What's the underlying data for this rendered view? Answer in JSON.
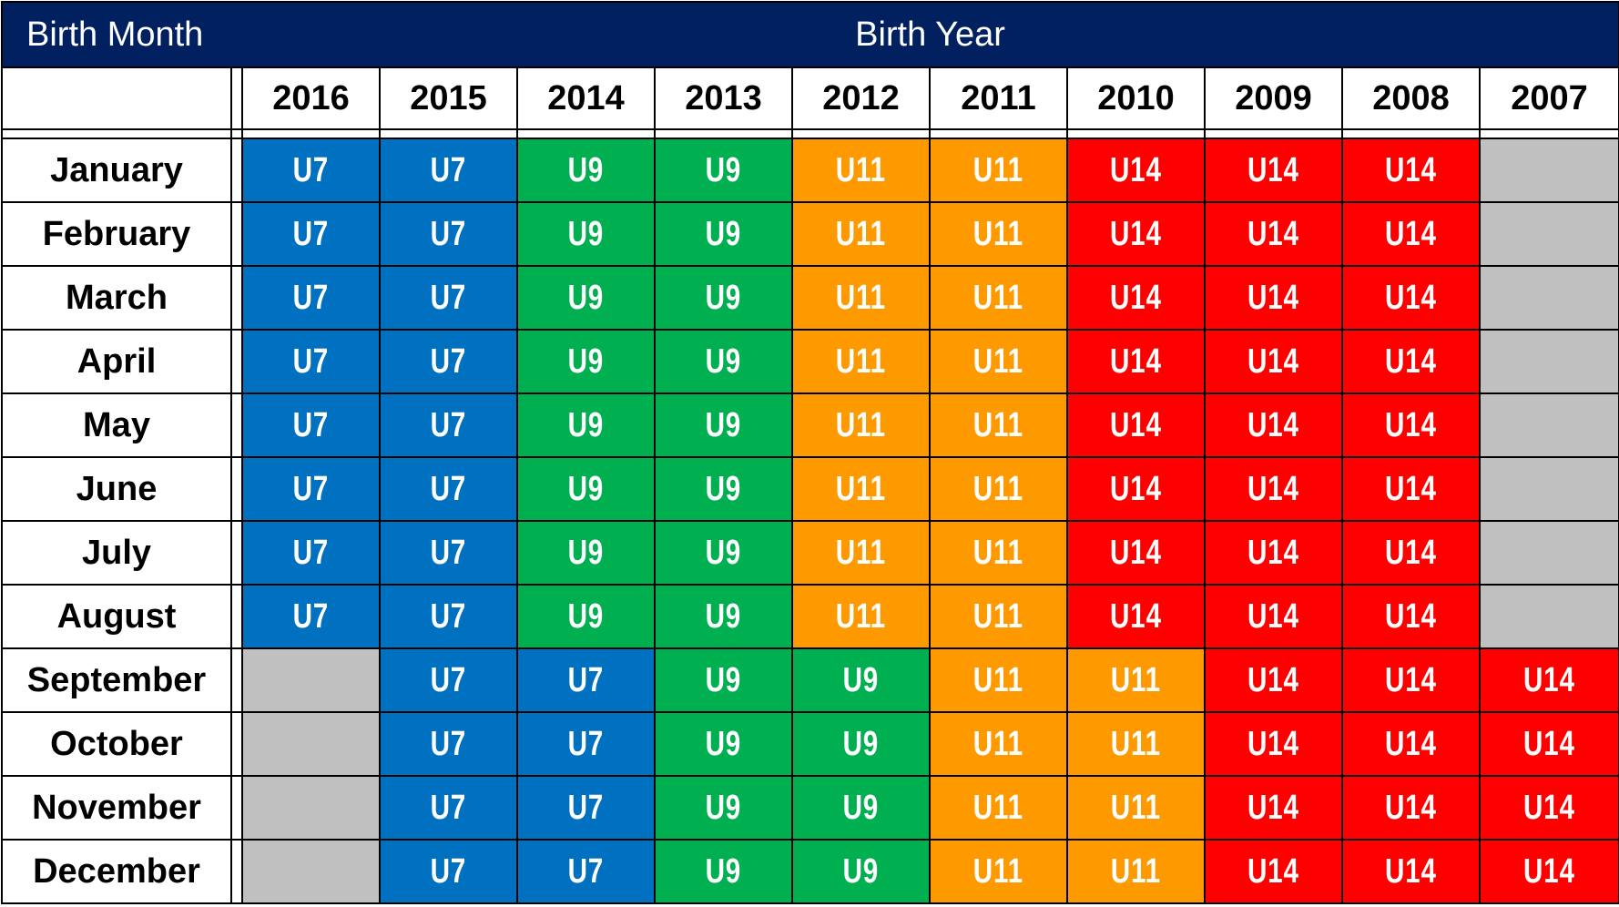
{
  "header": {
    "birth_month_label": "Birth Month",
    "birth_year_label": "Birth Year"
  },
  "years": [
    "2016",
    "2015",
    "2014",
    "2013",
    "2012",
    "2011",
    "2010",
    "2009",
    "2008",
    "2007"
  ],
  "groups": {
    "U7": {
      "label": "U7",
      "color": "#0070C0"
    },
    "U9": {
      "label": "U9",
      "color": "#00B050"
    },
    "U11": {
      "label": "U11",
      "color": "#FF9900"
    },
    "U14": {
      "label": "U14",
      "color": "#FF0000"
    },
    "none": {
      "label": "",
      "color": "#C0C0C0"
    }
  },
  "rows": [
    {
      "month": "January",
      "cells": [
        "U7",
        "U7",
        "U9",
        "U9",
        "U11",
        "U11",
        "U14",
        "U14",
        "U14",
        ""
      ]
    },
    {
      "month": "February",
      "cells": [
        "U7",
        "U7",
        "U9",
        "U9",
        "U11",
        "U11",
        "U14",
        "U14",
        "U14",
        ""
      ]
    },
    {
      "month": "March",
      "cells": [
        "U7",
        "U7",
        "U9",
        "U9",
        "U11",
        "U11",
        "U14",
        "U14",
        "U14",
        ""
      ]
    },
    {
      "month": "April",
      "cells": [
        "U7",
        "U7",
        "U9",
        "U9",
        "U11",
        "U11",
        "U14",
        "U14",
        "U14",
        ""
      ]
    },
    {
      "month": "May",
      "cells": [
        "U7",
        "U7",
        "U9",
        "U9",
        "U11",
        "U11",
        "U14",
        "U14",
        "U14",
        ""
      ]
    },
    {
      "month": "June",
      "cells": [
        "U7",
        "U7",
        "U9",
        "U9",
        "U11",
        "U11",
        "U14",
        "U14",
        "U14",
        ""
      ]
    },
    {
      "month": "July",
      "cells": [
        "U7",
        "U7",
        "U9",
        "U9",
        "U11",
        "U11",
        "U14",
        "U14",
        "U14",
        ""
      ]
    },
    {
      "month": "August",
      "cells": [
        "U7",
        "U7",
        "U9",
        "U9",
        "U11",
        "U11",
        "U14",
        "U14",
        "U14",
        ""
      ]
    },
    {
      "month": "September",
      "cells": [
        "",
        "U7",
        "U7",
        "U9",
        "U9",
        "U11",
        "U11",
        "U14",
        "U14",
        "U14"
      ]
    },
    {
      "month": "October",
      "cells": [
        "",
        "U7",
        "U7",
        "U9",
        "U9",
        "U11",
        "U11",
        "U14",
        "U14",
        "U14"
      ]
    },
    {
      "month": "November",
      "cells": [
        "",
        "U7",
        "U7",
        "U9",
        "U9",
        "U11",
        "U11",
        "U14",
        "U14",
        "U14"
      ]
    },
    {
      "month": "December",
      "cells": [
        "",
        "U7",
        "U7",
        "U9",
        "U9",
        "U11",
        "U11",
        "U14",
        "U14",
        "U14"
      ]
    }
  ]
}
